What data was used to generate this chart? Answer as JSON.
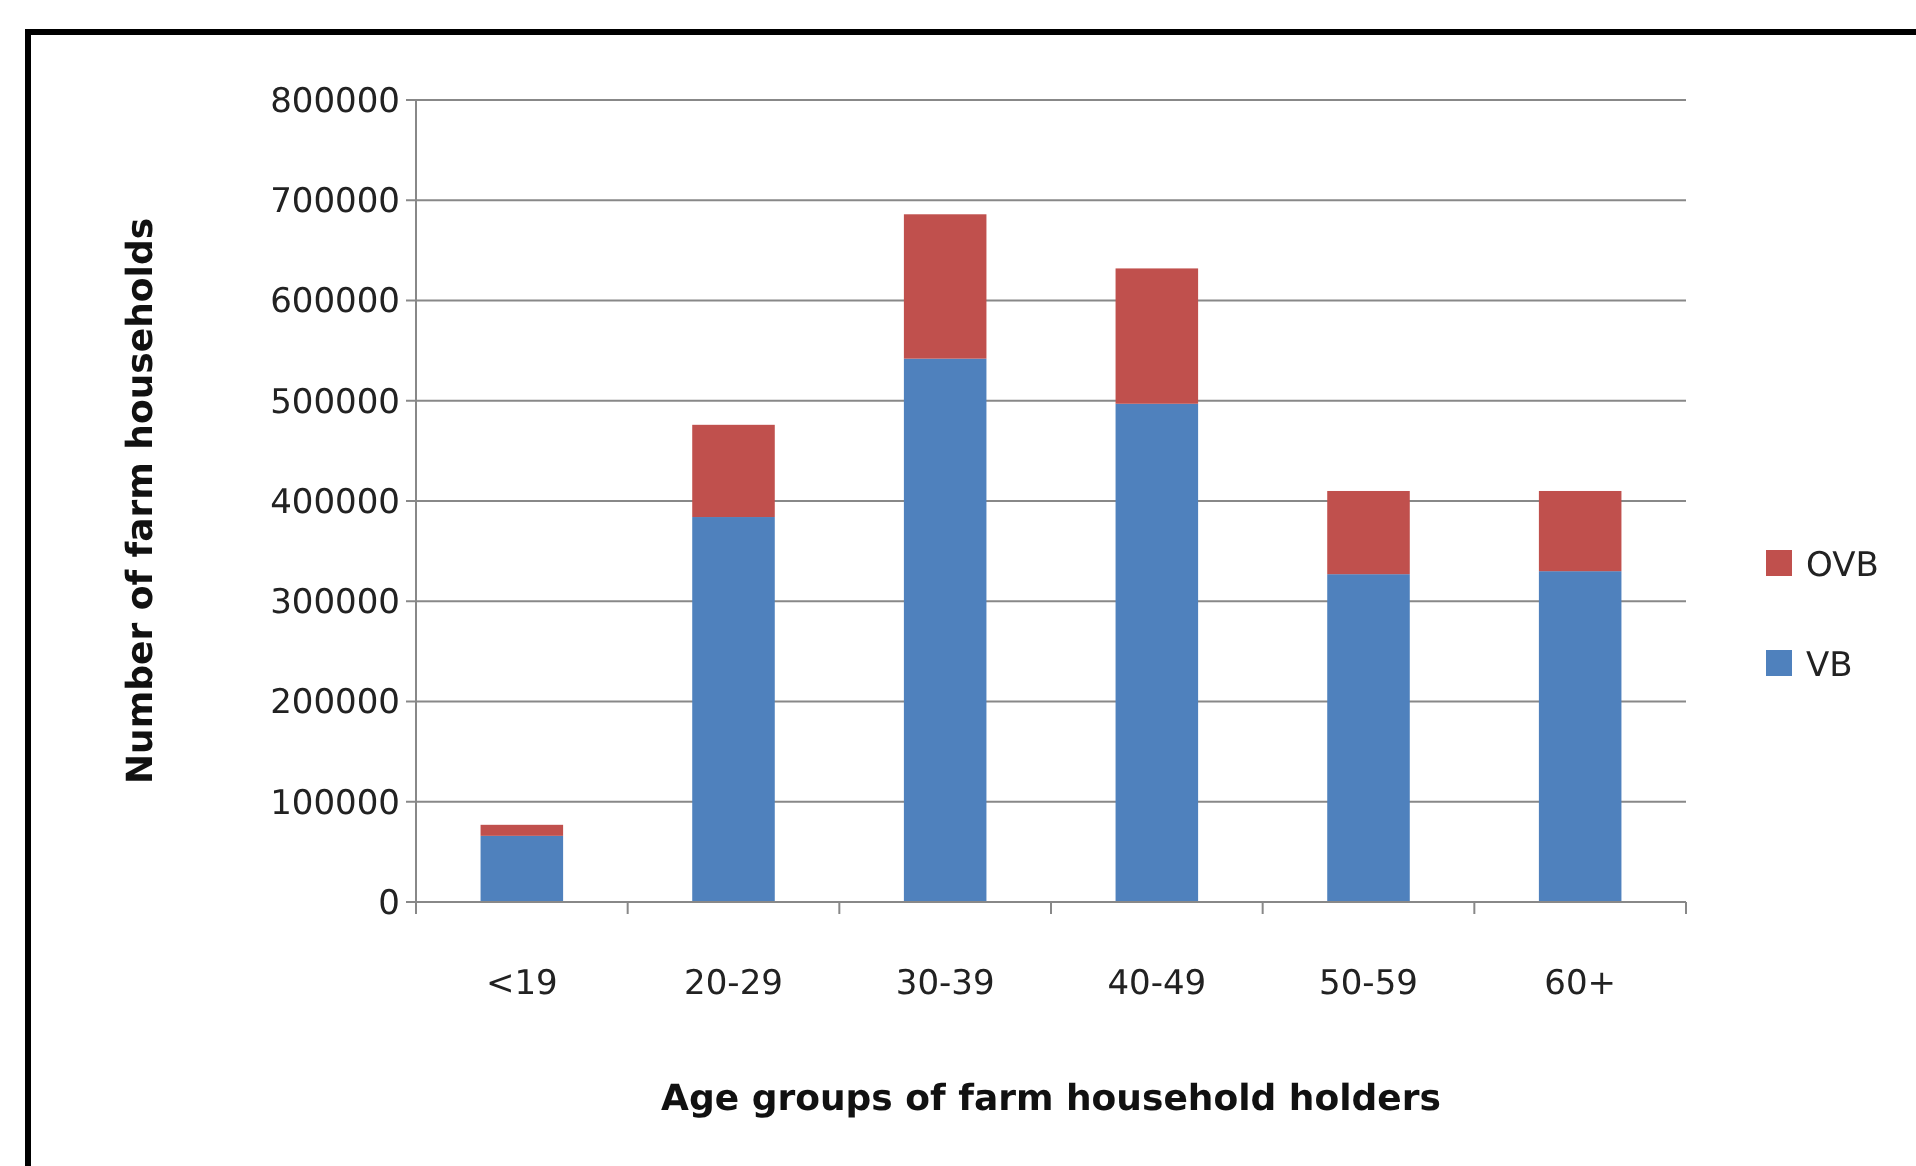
{
  "chart_data": {
    "type": "bar",
    "stacked": true,
    "xlabel": "Age groups of farm household holders",
    "ylabel": "Number of farm households",
    "categories": [
      "<19",
      "20-29",
      "30-39",
      "40-49",
      "50-59",
      "60+"
    ],
    "series": [
      {
        "name": "VB",
        "color": "#4f81bd",
        "values": [
          66000,
          384000,
          542000,
          497000,
          327000,
          330000
        ]
      },
      {
        "name": "OVB",
        "color": "#c0504d",
        "values": [
          11000,
          92000,
          144000,
          135000,
          83000,
          80000
        ]
      }
    ],
    "ylim": [
      0,
      800000
    ],
    "yticks": [
      0,
      100000,
      200000,
      300000,
      400000,
      500000,
      600000,
      700000,
      800000
    ],
    "grid": "y",
    "legend": "right"
  }
}
